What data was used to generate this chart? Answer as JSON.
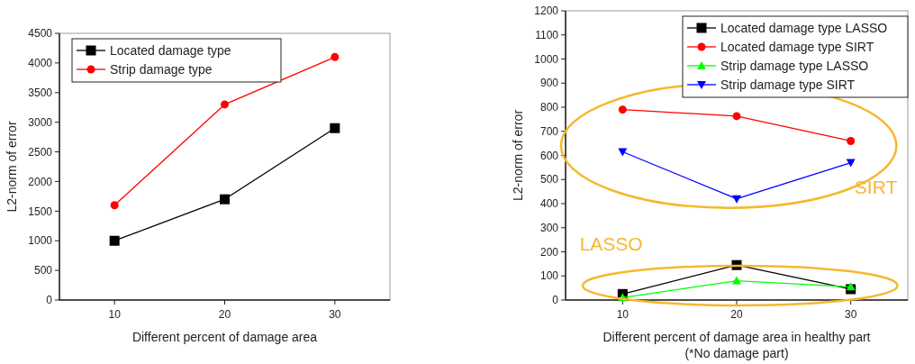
{
  "chart_data": [
    {
      "type": "line",
      "xlabel": "Different percent of damage area",
      "ylabel": "L2-norm of error",
      "x": [
        10,
        20,
        30
      ],
      "xlim": [
        5,
        35
      ],
      "xticks": [
        10,
        20,
        30
      ],
      "ylim": [
        0,
        4500
      ],
      "yticks": [
        0,
        500,
        1000,
        1500,
        2000,
        2500,
        3000,
        3500,
        4000,
        4500
      ],
      "grid": false,
      "legend": "top left",
      "series": [
        {
          "name": "Located damage type",
          "color": "#000000",
          "marker": "square",
          "values": [
            1000,
            1700,
            2900
          ]
        },
        {
          "name": "Strip damage type",
          "color": "#ff0000",
          "marker": "circle",
          "values": [
            1600,
            3300,
            4100
          ]
        }
      ]
    },
    {
      "type": "line",
      "xlabel": "Different percent of damage area in healthy part\n(*No damage part)",
      "ylabel": "L2-norm of error",
      "x": [
        10,
        20,
        30
      ],
      "xlim": [
        5,
        35
      ],
      "xticks": [
        10,
        20,
        30
      ],
      "ylim": [
        0,
        1200
      ],
      "yticks": [
        0,
        100,
        200,
        300,
        400,
        500,
        600,
        700,
        800,
        900,
        1000,
        1100,
        1200
      ],
      "grid": false,
      "legend": "top right",
      "annotations": [
        "SIRT",
        "LASSO"
      ],
      "series": [
        {
          "name": "Located damage type LASSO",
          "color": "#000000",
          "marker": "square",
          "values": [
            25,
            145,
            45
          ]
        },
        {
          "name": "Located damage type SIRT",
          "color": "#ff0000",
          "marker": "circle",
          "values": [
            790,
            763,
            660
          ]
        },
        {
          "name": "Strip damage type LASSO",
          "color": "#00ff00",
          "marker": "triangle",
          "values": [
            10,
            80,
            55
          ]
        },
        {
          "name": "Strip damage type SIRT",
          "color": "#0000ff",
          "marker": "triangle-down",
          "values": [
            615,
            420,
            570
          ]
        }
      ]
    }
  ]
}
